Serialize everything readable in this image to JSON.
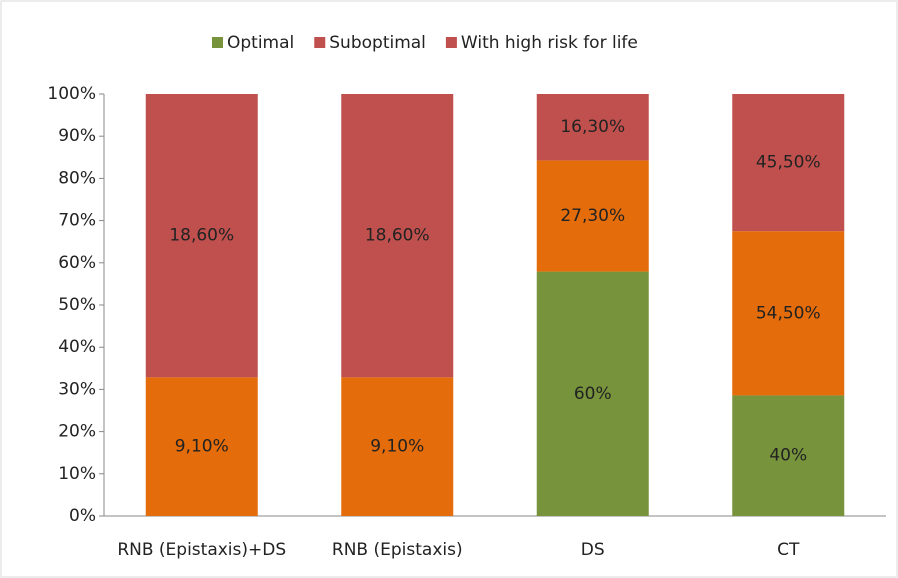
{
  "chart_data": {
    "type": "bar",
    "stacked": "percent",
    "categories": [
      "RNB (Epistaxis)+DS",
      "RNB (Epistaxis)",
      "DS",
      "CT"
    ],
    "series": [
      {
        "name": "Optimal",
        "color": "#77933c",
        "values": [
          0,
          0,
          60,
          40
        ],
        "value_labels": [
          null,
          null,
          "60%",
          "40%"
        ]
      },
      {
        "name": "Suboptimal",
        "color": "#e46c0a",
        "legend_color": "#c0504d",
        "values": [
          9.1,
          9.1,
          27.3,
          54.5
        ],
        "value_labels": [
          "9,10%",
          "9,10%",
          "27,30%",
          "54,50%"
        ]
      },
      {
        "name": "With high risk for life",
        "color": "#c0504d",
        "values": [
          18.6,
          18.6,
          16.3,
          45.5
        ],
        "value_labels": [
          "18,60%",
          "18,60%",
          "16,30%",
          "45,50%"
        ]
      }
    ],
    "ylim": [
      0,
      100
    ],
    "yticks": [
      {
        "value": 0,
        "label": "0%"
      },
      {
        "value": 10,
        "label": "10%"
      },
      {
        "value": 20,
        "label": "20%"
      },
      {
        "value": 30,
        "label": "30%"
      },
      {
        "value": 40,
        "label": "40%"
      },
      {
        "value": 50,
        "label": "50%"
      },
      {
        "value": 60,
        "label": "60%"
      },
      {
        "value": 70,
        "label": "70%"
      },
      {
        "value": 80,
        "label": "80%"
      },
      {
        "value": 90,
        "label": "90%"
      },
      {
        "value": 100,
        "label": "100%"
      }
    ],
    "legend": "top",
    "grid": false
  }
}
